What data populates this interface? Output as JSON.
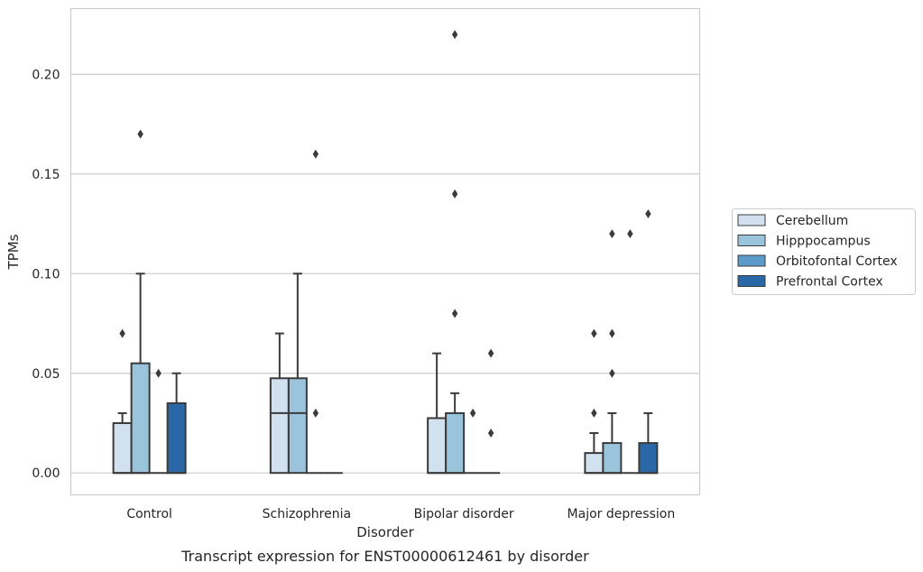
{
  "caption": "Transcript expression for ENST00000612461 by disorder",
  "chart_data": {
    "type": "box",
    "title": "",
    "xlabel": "Disorder",
    "ylabel": "TPMs",
    "ylim": [
      -0.011,
      0.233
    ],
    "yticks": [
      0.0,
      0.05,
      0.1,
      0.15,
      0.2
    ],
    "ytick_labels": [
      "0.00",
      "0.05",
      "0.10",
      "0.15",
      "0.20"
    ],
    "grid": "horizontal",
    "legend_position": "right",
    "categories": [
      "Control",
      "Schizophrenia",
      "Bipolar disorder",
      "Major depression"
    ],
    "series": [
      {
        "name": "Cerebellum",
        "color": "#d2e1f0",
        "boxes": [
          {
            "whislo": 0.0,
            "q1": 0.0,
            "med": 0.0,
            "q3": 0.025,
            "whishi": 0.03,
            "fliers": [
              0.07
            ]
          },
          {
            "whislo": 0.0,
            "q1": 0.0,
            "med": 0.03,
            "q3": 0.0475,
            "whishi": 0.07,
            "fliers": []
          },
          {
            "whislo": 0.0,
            "q1": 0.0,
            "med": 0.0,
            "q3": 0.0275,
            "whishi": 0.06,
            "fliers": []
          },
          {
            "whislo": 0.0,
            "q1": 0.0,
            "med": 0.0,
            "q3": 0.01,
            "whishi": 0.02,
            "fliers": [
              0.03,
              0.07
            ]
          }
        ]
      },
      {
        "name": "Hipppocampus",
        "color": "#9ac3dc",
        "boxes": [
          {
            "whislo": 0.0,
            "q1": 0.0,
            "med": 0.0,
            "q3": 0.055,
            "whishi": 0.1,
            "fliers": [
              0.17
            ]
          },
          {
            "whislo": 0.0,
            "q1": 0.0,
            "med": 0.03,
            "q3": 0.0475,
            "whishi": 0.1,
            "fliers": []
          },
          {
            "whislo": 0.0,
            "q1": 0.0,
            "med": 0.0,
            "q3": 0.03,
            "whishi": 0.04,
            "fliers": [
              0.08,
              0.14,
              0.22
            ]
          },
          {
            "whislo": 0.0,
            "q1": 0.0,
            "med": 0.0,
            "q3": 0.015,
            "whishi": 0.03,
            "fliers": [
              0.05,
              0.07,
              0.12
            ]
          }
        ]
      },
      {
        "name": "Orbitofontal Cortex",
        "color": "#5a9bc9",
        "boxes": [
          {
            "whislo": 0.0,
            "q1": 0.0,
            "med": 0.0,
            "q3": 0.0,
            "whishi": 0.0,
            "fliers": [
              0.05
            ]
          },
          {
            "whislo": 0.0,
            "q1": 0.0,
            "med": 0.0,
            "q3": 0.0,
            "whishi": 0.0,
            "fliers": [
              0.03,
              0.16
            ]
          },
          {
            "whislo": 0.0,
            "q1": 0.0,
            "med": 0.0,
            "q3": 0.0,
            "whishi": 0.0,
            "fliers": [
              0.03
            ]
          },
          {
            "whislo": 0.0,
            "q1": 0.0,
            "med": 0.0,
            "q3": 0.0,
            "whishi": 0.0,
            "fliers": [
              0.12
            ]
          }
        ]
      },
      {
        "name": "Prefrontal Cortex",
        "color": "#2a67a6",
        "boxes": [
          {
            "whislo": 0.0,
            "q1": 0.0,
            "med": 0.0,
            "q3": 0.035,
            "whishi": 0.05,
            "fliers": []
          },
          {
            "whislo": 0.0,
            "q1": 0.0,
            "med": 0.0,
            "q3": 0.0,
            "whishi": 0.0,
            "fliers": []
          },
          {
            "whislo": 0.0,
            "q1": 0.0,
            "med": 0.0,
            "q3": 0.0,
            "whishi": 0.0,
            "fliers": [
              0.02,
              0.06
            ]
          },
          {
            "whislo": 0.0,
            "q1": 0.0,
            "med": 0.0,
            "q3": 0.015,
            "whishi": 0.03,
            "fliers": [
              0.13
            ]
          }
        ]
      }
    ]
  }
}
